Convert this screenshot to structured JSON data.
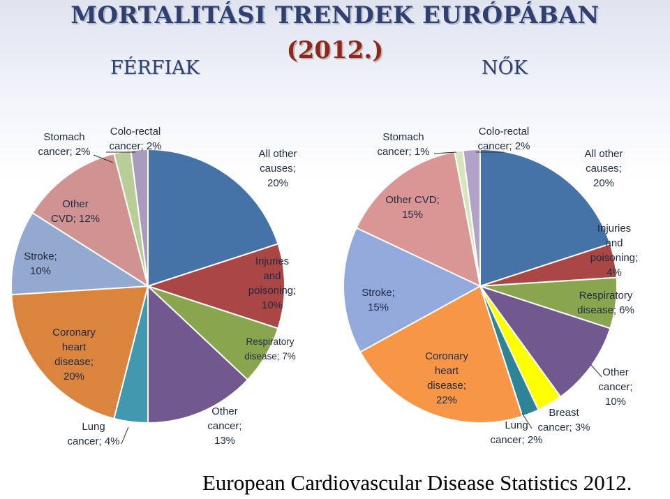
{
  "title_line1": "MORTALITÁSI TRENDEK EURÓPÁBAN",
  "title_line2": "(2012.)",
  "footer": "European Cardiovascular Disease Statistics 2012.",
  "chart_data": [
    {
      "type": "pie",
      "title": "FÉRFIAK",
      "slices": [
        {
          "name": "All other causes",
          "value": 20,
          "label": [
            "All other",
            "causes;",
            "20%"
          ],
          "color": "#4572a7"
        },
        {
          "name": "Injuries and poisoning",
          "value": 10,
          "label": [
            "Injuries",
            "and",
            "poisoning;",
            "10%"
          ],
          "color": "#aa4643"
        },
        {
          "name": "Respiratory disease",
          "value": 7,
          "label": [
            "Respiratory",
            "disease; 7%"
          ],
          "color": "#89a54e"
        },
        {
          "name": "Other cancer",
          "value": 13,
          "label": [
            "Other",
            "cancer;",
            "13%"
          ],
          "color": "#71588f"
        },
        {
          "name": "Lung cancer",
          "value": 4,
          "label": [
            "Lung",
            "cancer; 4%"
          ],
          "color": "#4198af"
        },
        {
          "name": "Coronary heart disease",
          "value": 20,
          "label": [
            "Coronary",
            "heart",
            "disease;",
            "20%"
          ],
          "color": "#db843d"
        },
        {
          "name": "Stroke",
          "value": 10,
          "label": [
            "Stroke;",
            "10%"
          ],
          "color": "#93a9cf"
        },
        {
          "name": "Other CVD",
          "value": 12,
          "label": [
            "Other",
            "CVD; 12%"
          ],
          "color": "#d19392"
        },
        {
          "name": "Stomach cancer",
          "value": 2,
          "label": [
            "Stomach",
            "cancer; 2%"
          ],
          "color": "#b9cd96"
        },
        {
          "name": "Colo-rectal cancer",
          "value": 2,
          "label": [
            "Colo-rectal",
            "cancer; 2%"
          ],
          "color": "#a99bbd"
        }
      ]
    },
    {
      "type": "pie",
      "title": "NŐK",
      "slices": [
        {
          "name": "All other causes",
          "value": 20,
          "label": [
            "All other",
            "causes;",
            "20%"
          ],
          "color": "#4572a7"
        },
        {
          "name": "Injuries and poisoning",
          "value": 4,
          "label": [
            "Injuries",
            "and",
            "poisoning;",
            "4%"
          ],
          "color": "#aa4643"
        },
        {
          "name": "Respiratory disease",
          "value": 6,
          "label": [
            "Respiratory",
            "disease; 6%"
          ],
          "color": "#89a54e"
        },
        {
          "name": "Other cancer",
          "value": 10,
          "label": [
            "Other",
            "cancer;",
            "10%"
          ],
          "color": "#71588f"
        },
        {
          "name": "Breast cancer",
          "value": 3,
          "label": [
            "Breast",
            "cancer; 3%"
          ],
          "color": "#ffff00"
        },
        {
          "name": "Lung cancer",
          "value": 2,
          "label": [
            "Lung",
            "cancer; 2%"
          ],
          "color": "#2e8497"
        },
        {
          "name": "Coronary heart disease",
          "value": 22,
          "label": [
            "Coronary",
            "heart",
            "disease;",
            "22%"
          ],
          "color": "#f79646"
        },
        {
          "name": "Stroke",
          "value": 15,
          "label": [
            "Stroke;",
            "15%"
          ],
          "color": "#93a9dc"
        },
        {
          "name": "Other CVD",
          "value": 15,
          "label": [
            "Other CVD;",
            "15%"
          ],
          "color": "#d99694"
        },
        {
          "name": "Stomach cancer",
          "value": 1,
          "label": [
            "Stomach",
            "cancer; 1%"
          ],
          "color": "#d7e4bd"
        },
        {
          "name": "Colo-rectal cancer",
          "value": 2,
          "label": [
            "Colo-rectal",
            "cancer; 2%"
          ],
          "color": "#b3a2c7"
        }
      ]
    }
  ]
}
